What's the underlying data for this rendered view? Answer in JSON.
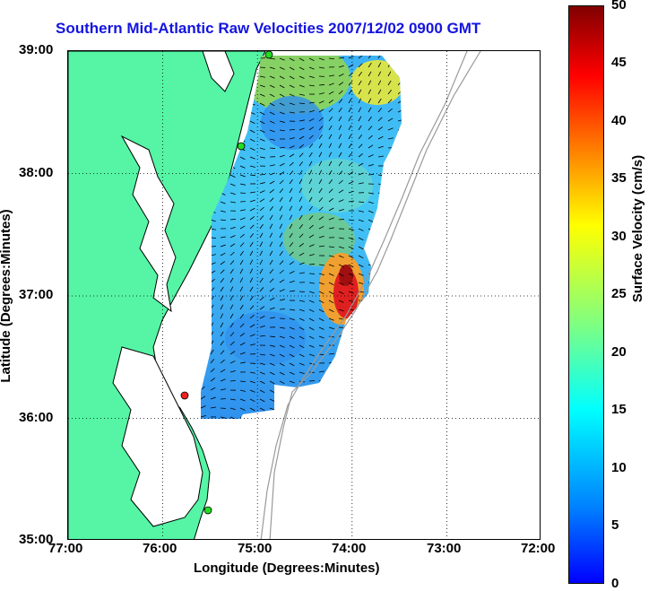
{
  "title": "Southern Mid-Atlantic Raw Velocities 2007/12/02 0900 GMT",
  "xlabel": "Longitude (Degrees:Minutes)",
  "ylabel": "Latitude (Degrees:Minutes)",
  "colorbar_label": "Surface Velocity (cm/s)",
  "x_ticks": [
    "77:00",
    "76:00",
    "75:00",
    "74:00",
    "73:00",
    "72:00"
  ],
  "y_ticks": [
    "39:00",
    "38:00",
    "37:00",
    "36:00",
    "35:00"
  ],
  "colorbar_ticks": [
    "50",
    "45",
    "40",
    "35",
    "30",
    "25",
    "20",
    "15",
    "10",
    "5",
    "0"
  ],
  "colors": {
    "land": "#55f5a5",
    "title": "#1414e0",
    "coast": "#000000",
    "bathymetry": "#9a9a9a",
    "station_active": "#22dd22",
    "station_inactive": "#ee2222"
  },
  "map": {
    "lon_range": [
      -77,
      -72
    ],
    "lat_range": [
      35,
      39
    ],
    "grid": true,
    "colormap": "jet",
    "velocity_range_cm_s": [
      0,
      50
    ]
  },
  "stations": [
    {
      "status": "active"
    },
    {
      "status": "active"
    },
    {
      "status": "inactive"
    },
    {
      "status": "active"
    }
  ]
}
